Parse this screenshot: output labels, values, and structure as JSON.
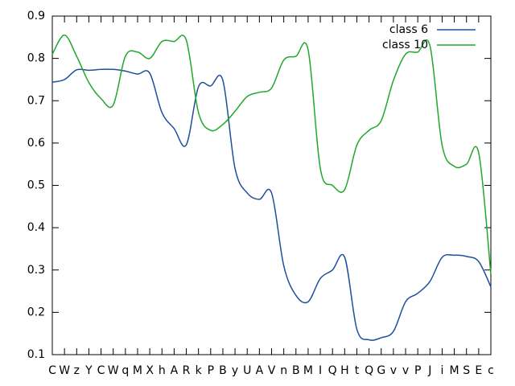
{
  "chart_data": {
    "type": "line",
    "categories": [
      "C",
      "W",
      "z",
      "Y",
      "C",
      "W",
      "q",
      "M",
      "X",
      "h",
      "A",
      "R",
      "k",
      "P",
      "B",
      "y",
      "U",
      "A",
      "V",
      "n",
      "B",
      "M",
      "I",
      "Q",
      "H",
      "t",
      "Q",
      "G",
      "v",
      "v",
      "P",
      "J",
      "i",
      "M",
      "S",
      "E",
      "c"
    ],
    "series": [
      {
        "name": "class 6",
        "color": "#1f4e9c",
        "values": [
          0.744,
          0.75,
          0.773,
          0.772,
          0.774,
          0.774,
          0.77,
          0.763,
          0.765,
          0.672,
          0.634,
          0.596,
          0.733,
          0.735,
          0.748,
          0.54,
          0.482,
          0.467,
          0.482,
          0.31,
          0.24,
          0.225,
          0.28,
          0.3,
          0.33,
          0.16,
          0.135,
          0.14,
          0.155,
          0.225,
          0.245,
          0.273,
          0.33,
          0.335,
          0.332,
          0.32,
          0.26
        ]
      },
      {
        "name": "class 10",
        "color": "#1fa82a",
        "values": [
          0.81,
          0.855,
          0.805,
          0.743,
          0.705,
          0.69,
          0.805,
          0.815,
          0.8,
          0.84,
          0.84,
          0.843,
          0.672,
          0.63,
          0.644,
          0.675,
          0.71,
          0.72,
          0.73,
          0.796,
          0.805,
          0.82,
          0.54,
          0.5,
          0.49,
          0.595,
          0.63,
          0.653,
          0.748,
          0.81,
          0.815,
          0.83,
          0.595,
          0.545,
          0.55,
          0.577,
          0.29
        ]
      }
    ],
    "ylim": [
      0.1,
      0.9
    ],
    "yticks": [
      0.1,
      0.2,
      0.3,
      0.4,
      0.5,
      0.6,
      0.7,
      0.8,
      0.9
    ],
    "grid": false,
    "legend": "top-right"
  }
}
